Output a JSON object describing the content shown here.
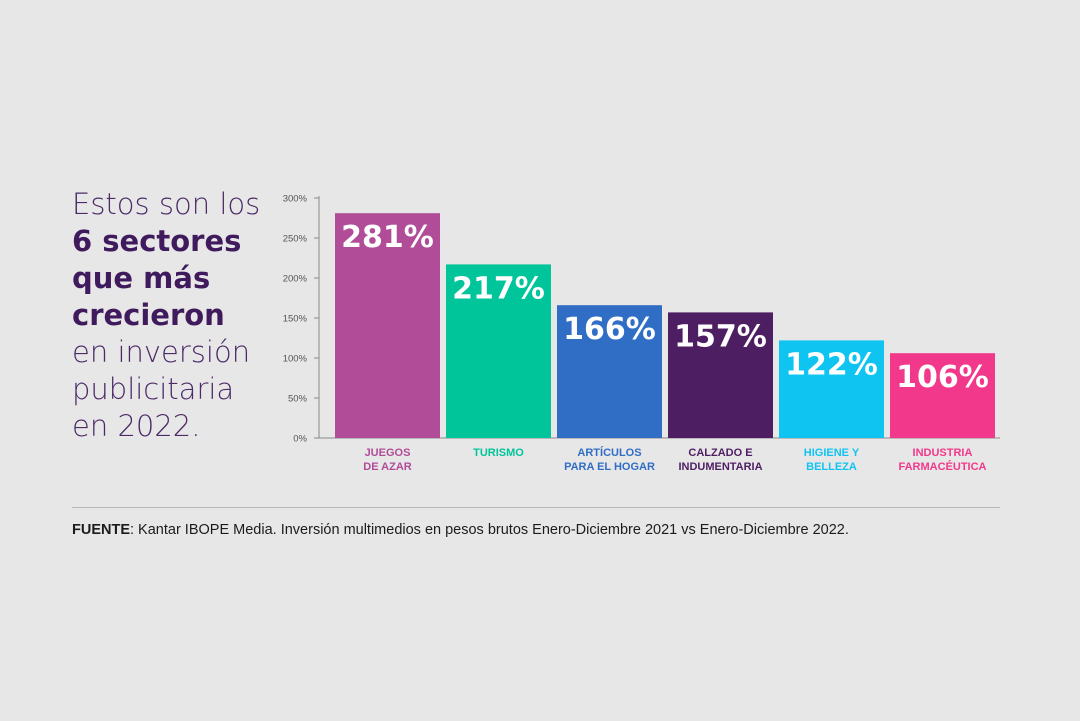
{
  "headline": {
    "line1": "Estos son los",
    "line2": "6 sectores",
    "line3": "que más",
    "line4": "crecieron",
    "line5": "en inversión",
    "line6": "publicitaria",
    "line7": "en 2022."
  },
  "chart_data": {
    "type": "bar",
    "categories": [
      [
        "JUEGOS",
        "DE AZAR"
      ],
      [
        "TURISMO"
      ],
      [
        "ARTÍCULOS",
        "PARA EL HOGAR"
      ],
      [
        "CALZADO E",
        "INDUMENTARIA"
      ],
      [
        "HIGIENE Y",
        "BELLEZA"
      ],
      [
        "INDUSTRIA",
        "FARMACÉUTICA"
      ]
    ],
    "values": [
      281,
      217,
      166,
      157,
      122,
      106
    ],
    "value_labels": [
      "281%",
      "217%",
      "166%",
      "157%",
      "122%",
      "106%"
    ],
    "colors": [
      "#b04c98",
      "#00c49a",
      "#2f6ec4",
      "#4e1e63",
      "#10c4f2",
      "#f2388a"
    ],
    "yticks": [
      0,
      50,
      100,
      150,
      200,
      250,
      300
    ],
    "ytick_labels": [
      "0%",
      "50%",
      "100%",
      "150%",
      "200%",
      "250%",
      "300%"
    ],
    "ylim": [
      0,
      300
    ],
    "grid": false
  },
  "source": {
    "label": "FUENTE",
    "text": ": Kantar IBOPE Media. Inversión multimedios en pesos brutos Enero-Diciembre 2021 vs Enero-Diciembre 2022."
  }
}
